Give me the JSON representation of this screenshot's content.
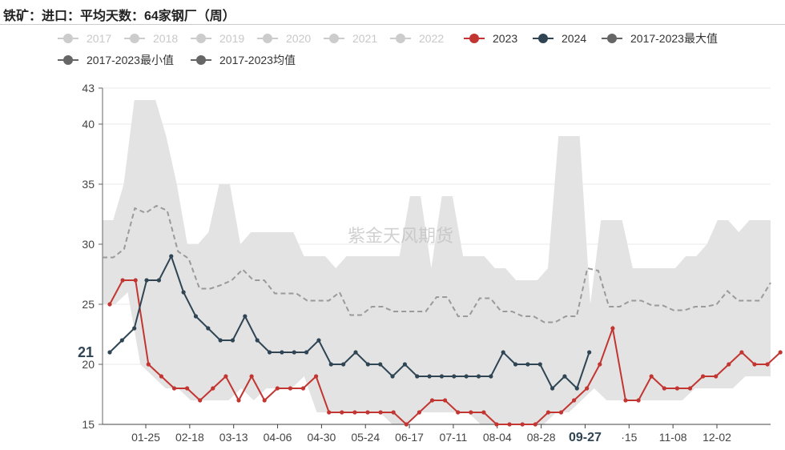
{
  "title": "铁矿：进口：平均天数：64家钢厂（周）",
  "watermark": "紫金天风期货",
  "colors": {
    "series_2023": "#c23531",
    "series_2024": "#2f4554",
    "band": "#e3e3e3",
    "mean_line": "#9a9a9a",
    "legend_disabled": "#cccccc",
    "legend_stat": "#666666"
  },
  "chart_data": {
    "type": "line",
    "title": "铁矿：进口：平均天数：64家钢厂（周）",
    "y_axis": {
      "min": 15,
      "max": 43,
      "ticks": [
        15,
        20,
        25,
        30,
        35,
        40,
        43
      ]
    },
    "x_axis": {
      "tick_labels": [
        "01-25",
        "02-18",
        "03-13",
        "04-06",
        "04-30",
        "05-24",
        "06-17",
        "07-11",
        "08-04",
        "08-28",
        "09-27",
        "·15",
        "11-08",
        "12-02"
      ]
    },
    "current_value": {
      "label": "21",
      "x_label": "09-27"
    },
    "legend": [
      {
        "name": "2017",
        "active": false
      },
      {
        "name": "2018",
        "active": false
      },
      {
        "name": "2019",
        "active": false
      },
      {
        "name": "2020",
        "active": false
      },
      {
        "name": "2021",
        "active": false
      },
      {
        "name": "2022",
        "active": false
      },
      {
        "name": "2023",
        "active": true
      },
      {
        "name": "2024",
        "active": true
      },
      {
        "name": "2017-2023最大值",
        "active": true
      },
      {
        "name": "2017-2023最小值",
        "active": true
      },
      {
        "name": "2017-2023均值",
        "active": true
      }
    ],
    "series": [
      {
        "name": "2023",
        "values": [
          25,
          27,
          27,
          20,
          19,
          18,
          18,
          17,
          18,
          19,
          17,
          19,
          17,
          18,
          18,
          18,
          19,
          16,
          16,
          16,
          16,
          16,
          16,
          15,
          16,
          17,
          17,
          16,
          16,
          16,
          15,
          15,
          15,
          15,
          16,
          16,
          17,
          18,
          20,
          23,
          17,
          17,
          19,
          18,
          18,
          18,
          19,
          19,
          20,
          21,
          20,
          20,
          21
        ]
      },
      {
        "name": "2024",
        "values": [
          21,
          22,
          23,
          27,
          27,
          29,
          26,
          24,
          23,
          22,
          22,
          24,
          22,
          21,
          21,
          21,
          21,
          22,
          20,
          20,
          21,
          20,
          20,
          19,
          20,
          19,
          19,
          19,
          19,
          19,
          19,
          19,
          21,
          20,
          20,
          20,
          18,
          19,
          18,
          21
        ]
      },
      {
        "name": "2017-2023最大值",
        "values": [
          32,
          32,
          35,
          42,
          42,
          42,
          39,
          35,
          30,
          30,
          31,
          35,
          35,
          30,
          31,
          31,
          31,
          31,
          31,
          29,
          29,
          29,
          28,
          29,
          29,
          29,
          29,
          29,
          29,
          34,
          34,
          28,
          34,
          34,
          29,
          29,
          29,
          28,
          28,
          27,
          27,
          27,
          28,
          39,
          39,
          39,
          25,
          32,
          32,
          32,
          28,
          28,
          28,
          28,
          28,
          29,
          29,
          30,
          32,
          32,
          31,
          32,
          32,
          32
        ]
      },
      {
        "name": "2017-2023最小值",
        "values": [
          25,
          25,
          26,
          20,
          19,
          18,
          18,
          17,
          17,
          17,
          17,
          18,
          17,
          18,
          18,
          18,
          19,
          16,
          16,
          16,
          16,
          16,
          16,
          15,
          15,
          16,
          16,
          16,
          16,
          16,
          15,
          15,
          15,
          15,
          15,
          15,
          16,
          16,
          17,
          18,
          17,
          17,
          17,
          17,
          17,
          17,
          17,
          18,
          18,
          18,
          18,
          19,
          19,
          19
        ]
      },
      {
        "name": "2017-2023均值",
        "values": [
          28.9,
          28.9,
          29.6,
          33.0,
          32.6,
          33.2,
          32.8,
          29.4,
          28.8,
          26.3,
          26.3,
          26.6,
          27.0,
          27.9,
          27.0,
          27.0,
          25.9,
          25.9,
          25.9,
          25.3,
          25.3,
          25.3,
          26.0,
          24.1,
          24.1,
          24.8,
          24.8,
          24.4,
          24.4,
          24.4,
          24.4,
          25.6,
          25.6,
          24.0,
          24.0,
          25.5,
          25.5,
          24.4,
          24.4,
          24.0,
          24.0,
          23.5,
          23.5,
          24.0,
          24.0,
          28.0,
          27.8,
          24.8,
          24.8,
          25.3,
          25.3,
          24.9,
          24.9,
          24.5,
          24.5,
          24.8,
          24.8,
          25.0,
          26.1,
          25.3,
          25.3,
          25.3,
          26.8
        ]
      }
    ]
  }
}
